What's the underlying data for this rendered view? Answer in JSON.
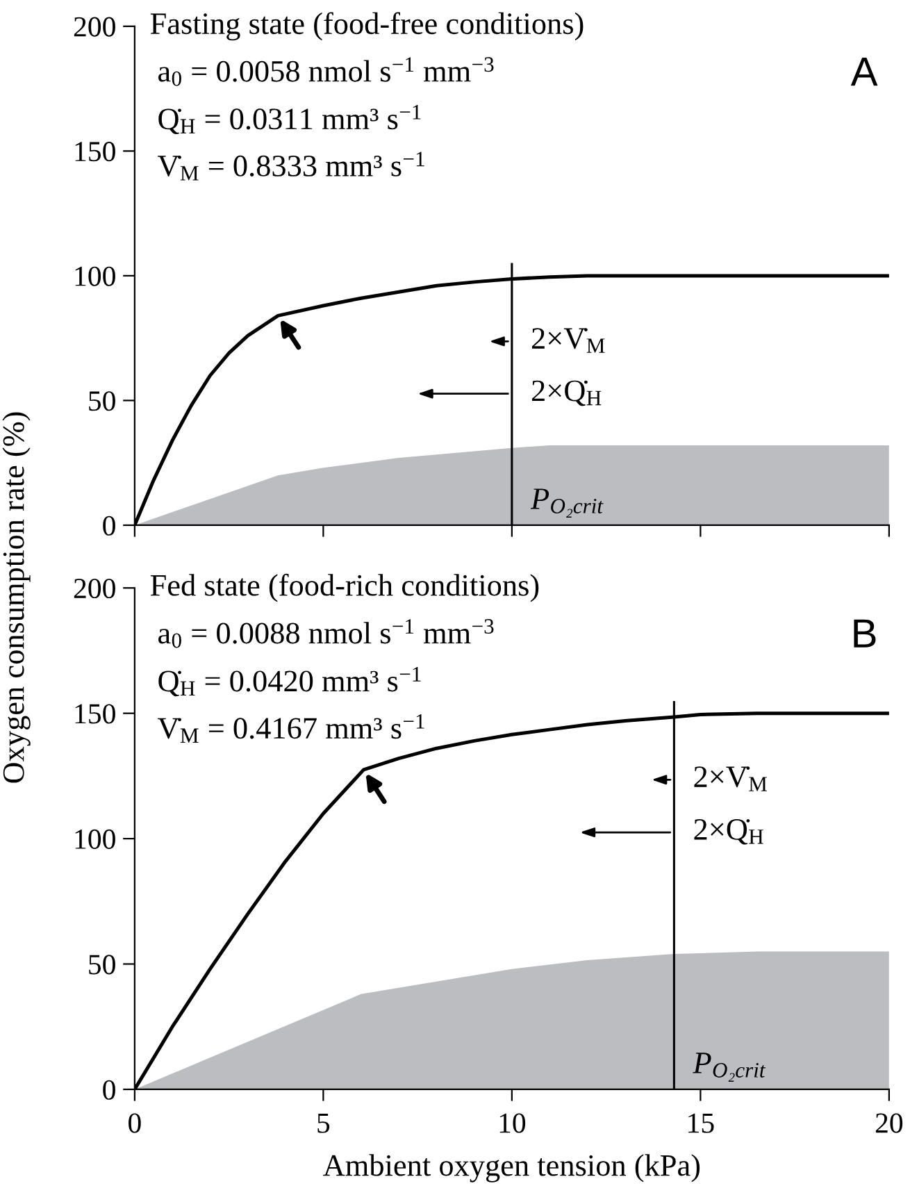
{
  "chart_data": [
    {
      "type": "line",
      "title": "Fasting state (food-free conditions)",
      "ylabel": "Oxygen consumption rate (%)",
      "annotations": [
        "A",
        "a$_{0}$ = 0.0058 nmol s$^{−1}$ mm$^{−3}$",
        "Q̇$_{H}$ = 0.0311 mm³ s$^{−1}$",
        "V̇$_{M}$ = 0.8333 mm³ s$^{−1}$",
        "2×V̇$_{M}$",
        "2×Q̇$_{H}$"
      ],
      "series": [
        {
          "type": "area",
          "color": "#bcbdc1",
          "x": [
            0,
            3.8,
            5,
            7,
            10,
            11,
            12,
            20
          ],
          "values": [
            0,
            20,
            23,
            27,
            31,
            32,
            32,
            32
          ]
        },
        {
          "color": "#000000",
          "x": [
            0,
            0.5,
            1,
            1.5,
            2,
            2.5,
            3,
            3.8,
            5,
            6,
            7,
            8,
            9,
            10,
            11,
            12,
            20
          ],
          "values": [
            0,
            18,
            34,
            48,
            60,
            69,
            76,
            84,
            88,
            91,
            93.5,
            96,
            97.5,
            98.7,
            99.5,
            100,
            100
          ]
        }
      ],
      "ref_lines": [
        {
          "axis": "x",
          "value": 10,
          "label": "P$_{O₂crit}$",
          "color": "#000000"
        }
      ],
      "xlim": [
        0,
        20
      ],
      "xticks": [
        0,
        5,
        10,
        15,
        20
      ],
      "ylim": [
        0,
        200
      ],
      "yticks": [
        0,
        50,
        100,
        150,
        200
      ],
      "tick_labels": "y",
      "grid": false,
      "legend": false
    },
    {
      "type": "line",
      "title": "Fed state (food-rich conditions)",
      "xlabel": "Ambient oxygen tension (kPa)",
      "annotations": [
        "B",
        "a$_{0}$ = 0.0088 nmol s$^{−1}$ mm$^{−3}$",
        "Q̇$_{H}$ = 0.0420 mm³ s$^{−1}$",
        "V̇$_{M}$ = 0.4167 mm³ s$^{−1}$",
        "2×V̇$_{M}$",
        "2×Q̇$_{H}$"
      ],
      "series": [
        {
          "type": "area",
          "color": "#bcbdc1",
          "x": [
            0,
            6,
            8,
            10,
            12,
            14.3,
            16.5,
            20
          ],
          "values": [
            0,
            38,
            43,
            48,
            51.5,
            54,
            55,
            55
          ]
        },
        {
          "color": "#000000",
          "x": [
            0,
            1,
            2,
            3,
            4,
            5,
            6.07,
            7,
            8,
            9,
            10,
            11,
            12,
            13,
            14.3,
            15,
            16.5,
            20
          ],
          "values": [
            0,
            25,
            48,
            70,
            91,
            110,
            127.5,
            132,
            136,
            139,
            141.5,
            143.5,
            145.5,
            147,
            148.5,
            149.5,
            150,
            150
          ]
        }
      ],
      "ref_lines": [
        {
          "axis": "x",
          "value": 14.3,
          "label": "P$_{O₂crit}$",
          "color": "#000000"
        }
      ],
      "xlim": [
        0,
        20
      ],
      "xticks": [
        0,
        5,
        10,
        15,
        20
      ],
      "ylim": [
        0,
        200
      ],
      "yticks": [
        0,
        50,
        100,
        150,
        200
      ],
      "grid": false,
      "legend": false
    }
  ]
}
